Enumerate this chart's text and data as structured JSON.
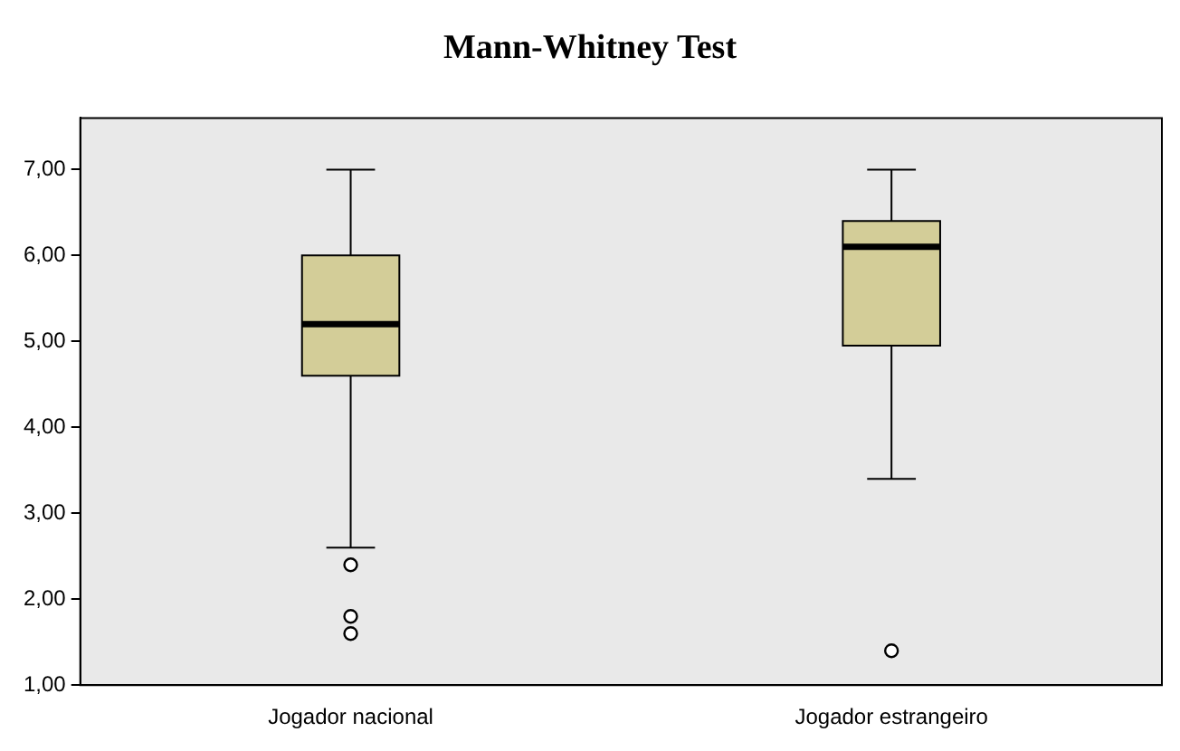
{
  "chart_data": {
    "type": "box",
    "title": "Mann-Whitney Test",
    "categories": [
      "Jogador nacional",
      "Jogador estrangeiro"
    ],
    "color": "#d3cd98",
    "boxes": [
      {
        "low": 2.6,
        "q1": 4.6,
        "median": 5.2,
        "q3": 6.0,
        "high": 7.0,
        "outliers": [
          2.4,
          1.8,
          1.6
        ]
      },
      {
        "low": 3.4,
        "q1": 4.95,
        "median": 6.1,
        "q3": 6.4,
        "high": 7.0,
        "outliers": [
          1.4
        ]
      }
    ],
    "ylim": [
      1,
      7.6
    ],
    "yticks": [
      {
        "value": 1,
        "label": "1,00"
      },
      {
        "value": 2,
        "label": "2,00"
      },
      {
        "value": 3,
        "label": "3,00"
      },
      {
        "value": 4,
        "label": "4,00"
      },
      {
        "value": 5,
        "label": "5,00"
      },
      {
        "value": 6,
        "label": "6,00"
      },
      {
        "value": 7,
        "label": "7,00"
      }
    ],
    "grid": false,
    "legend": false
  }
}
